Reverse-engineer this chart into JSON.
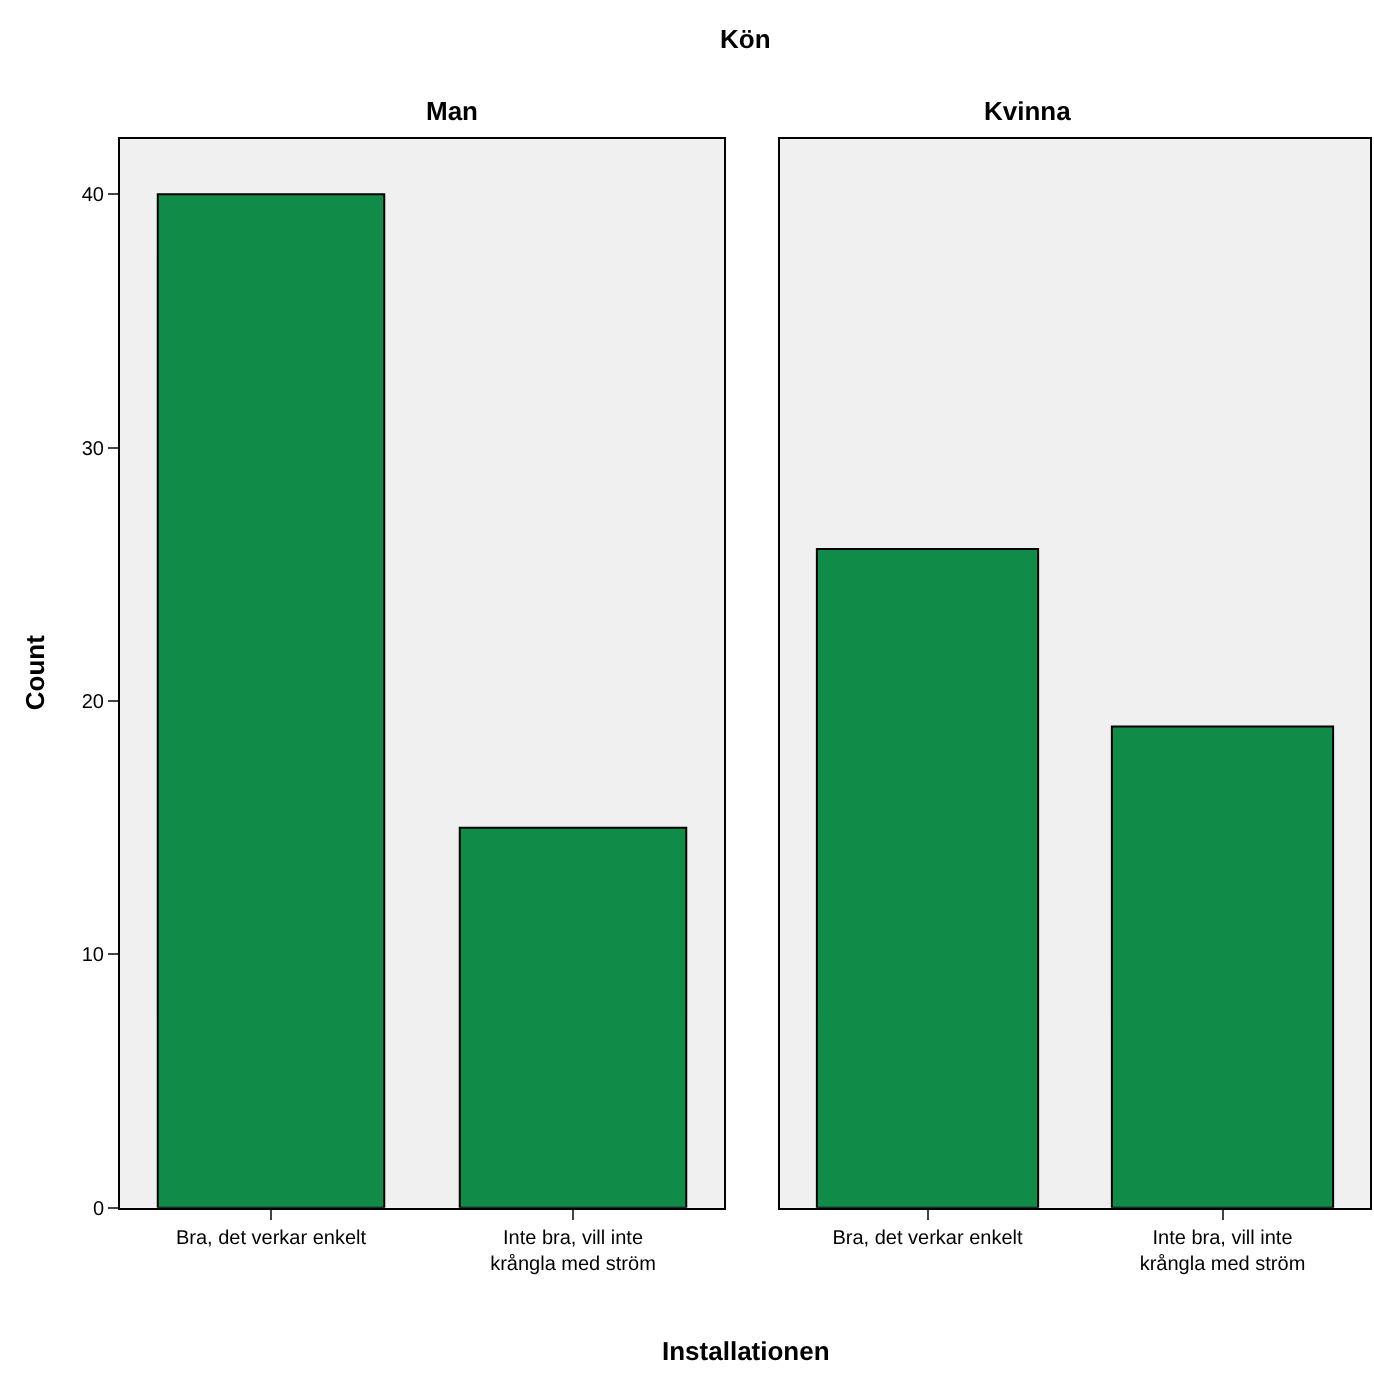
{
  "chart_data": [
    {
      "type": "bar",
      "title": "Man",
      "annotations": [
        "Kön"
      ],
      "ylabel": "Count",
      "categories": [
        "Bra, det verkar enkelt",
        "Inte bra, vill inte krångla med ström"
      ],
      "values": [
        40,
        15
      ],
      "color": "#108c48",
      "ylim": [
        0,
        42.2
      ],
      "yticks": [
        0,
        10,
        20,
        30,
        40
      ],
      "grid": false
    },
    {
      "type": "bar",
      "title": "Kvinna",
      "xlabel": "Installationen",
      "categories": [
        "Bra, det verkar enkelt",
        "Inte bra, vill inte krångla med ström"
      ],
      "values": [
        26,
        19
      ],
      "color": "#108c48",
      "ylim": [
        0,
        42.2
      ],
      "yticks": [
        0,
        10,
        20,
        30,
        40
      ],
      "grid": false,
      "tick_labels": "x"
    }
  ]
}
